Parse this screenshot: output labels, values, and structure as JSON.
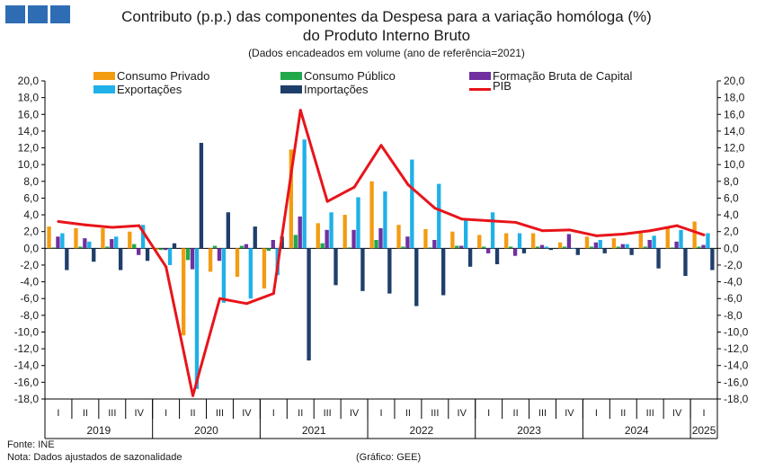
{
  "header": {
    "title_line1": "Contributo (p.p.) das componentes da Despesa para a variação homóloga (%)",
    "title_line2": "do Produto Interno Bruto",
    "subtitle": "(Dados encadeados em volume (ano de referência=2021)"
  },
  "footer": {
    "source": "Fonte:  INE",
    "note": "Nota: Dados ajustados de sazonalidade",
    "credit": "(Gráfico: GEE)"
  },
  "colors": {
    "consumo_privado": "#F39C12",
    "consumo_publico": "#21A84A",
    "fbc": "#7030A0",
    "exportacoes": "#1FB1E8",
    "importacoes": "#1F3F6B",
    "pib": "#E8141B"
  },
  "chart_data": {
    "type": "bar",
    "title": "Contributo (p.p.) das componentes da Despesa para a variação homóloga (%) do Produto Interno Bruto",
    "subtitle": "(Dados encadeados em volume (ano de referência=2021)",
    "ylim": [
      -18,
      20
    ],
    "yticks": [
      "20,0",
      "18,0",
      "16,0",
      "14,0",
      "12,0",
      "10,0",
      "8,0",
      "6,0",
      "4,0",
      "2,0",
      "0,0",
      "-2,0",
      "-4,0",
      "-6,0",
      "-8,0",
      "-10,0",
      "-12,0",
      "-14,0",
      "-16,0",
      "-18,0"
    ],
    "categories": [
      "I",
      "II",
      "III",
      "IV",
      "I",
      "II",
      "III",
      "IV",
      "I",
      "II",
      "III",
      "IV",
      "I",
      "II",
      "III",
      "IV",
      "I",
      "II",
      "III",
      "IV",
      "I",
      "II",
      "III",
      "IV",
      "I"
    ],
    "years": [
      {
        "label": "2019",
        "quarters": 4
      },
      {
        "label": "2020",
        "quarters": 4
      },
      {
        "label": "2021",
        "quarters": 4
      },
      {
        "label": "2022",
        "quarters": 4
      },
      {
        "label": "2023",
        "quarters": 4
      },
      {
        "label": "2024",
        "quarters": 4
      },
      {
        "label": "2025",
        "quarters": 1
      }
    ],
    "series": [
      {
        "name": "Consumo Privado",
        "key": "consumo_privado",
        "values": [
          2.6,
          2.4,
          2.4,
          2.0,
          -0.2,
          -10.4,
          -2.8,
          -3.4,
          -4.8,
          11.8,
          3.0,
          4.0,
          8.0,
          2.8,
          2.3,
          2.0,
          1.6,
          1.8,
          1.8,
          0.7,
          1.4,
          1.2,
          1.8,
          2.5,
          3.2
        ]
      },
      {
        "name": "Consumo Público",
        "key": "consumo_publico",
        "values": [
          0.1,
          0.2,
          0.2,
          0.5,
          -0.2,
          -1.4,
          0.3,
          0.3,
          -0.3,
          1.6,
          0.6,
          0.1,
          1.0,
          0.2,
          0.1,
          0.3,
          0.2,
          0.2,
          0.2,
          0.2,
          0.2,
          0.2,
          0.2,
          0.1,
          0.2
        ]
      },
      {
        "name": "Formação Bruta de Capital",
        "key": "fbc",
        "values": [
          1.4,
          1.2,
          1.1,
          -0.8,
          -0.2,
          -2.5,
          -1.5,
          0.5,
          1.0,
          3.8,
          2.2,
          2.2,
          2.4,
          1.4,
          1.0,
          0.3,
          -0.6,
          -0.9,
          0.4,
          1.7,
          0.7,
          0.5,
          1.0,
          0.8,
          0.4
        ]
      },
      {
        "name": "Exportações",
        "key": "exportacoes",
        "values": [
          1.8,
          0.8,
          1.4,
          2.8,
          -2.0,
          -16.8,
          -6.5,
          -6.0,
          -3.2,
          13.0,
          4.3,
          6.1,
          6.8,
          10.6,
          7.7,
          3.5,
          4.3,
          1.8,
          0.2,
          0.0,
          1.0,
          0.5,
          1.5,
          2.2,
          1.8
        ]
      },
      {
        "name": "Importações",
        "key": "importacoes",
        "values": [
          -2.6,
          -1.6,
          -2.6,
          -1.5,
          0.6,
          12.6,
          4.3,
          2.6,
          1.4,
          -13.4,
          -4.4,
          -5.1,
          -5.4,
          -6.9,
          -5.6,
          -2.2,
          -1.9,
          -0.6,
          -0.2,
          -0.8,
          -0.6,
          -0.8,
          -2.4,
          -3.3,
          -2.6
        ]
      }
    ],
    "line": {
      "name": "PIB",
      "key": "pib",
      "values": [
        3.2,
        2.8,
        2.5,
        2.7,
        -2.2,
        -17.6,
        -6.0,
        -6.6,
        -5.4,
        16.5,
        5.6,
        7.3,
        12.3,
        7.6,
        4.8,
        3.5,
        3.3,
        3.1,
        2.1,
        2.2,
        1.5,
        1.7,
        2.1,
        2.7,
        1.6
      ]
    }
  }
}
